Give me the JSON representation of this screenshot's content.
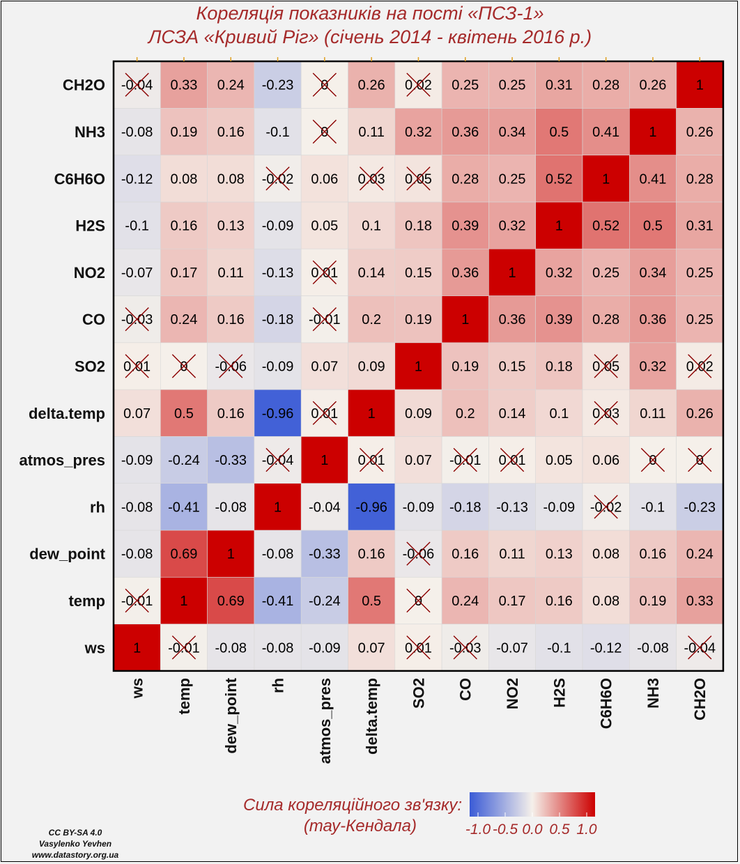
{
  "title_line1": "Кореляція показників на пості «ПСЗ-1»",
  "title_line2": "ЛСЗА «Кривий Ріг» (січень 2014 - квітень 2016 р.)",
  "legend": {
    "title_line1": "Сила кореляційного зв'язку:",
    "title_line2": "(тау-Кендала)",
    "ticks": [
      "-1.0",
      "-0.5",
      "0.0",
      "0.5",
      "1.0"
    ],
    "colors": {
      "low": "#3b5bd6",
      "mid": "#f5f0ea",
      "high": "#cc0000"
    }
  },
  "credit": {
    "line1": "CC BY-SA 4.0",
    "line2": "Vasylenko Yevhen",
    "line3": "www.datastory.org.ua"
  },
  "chart_data": {
    "type": "heatmap",
    "variables": [
      "ws",
      "temp",
      "dew_point",
      "rh",
      "atmos_pres",
      "delta.temp",
      "SO2",
      "CO",
      "NO2",
      "H2S",
      "C6H6O",
      "NH3",
      "CH2O"
    ],
    "cells": [
      [
        "1",
        "-0.01",
        "-0.08",
        "-0.08",
        "-0.09",
        "0.07",
        "0.01",
        "-0.03",
        "-0.07",
        "-0.1",
        "-0.12",
        "-0.08",
        "-0.04"
      ],
      [
        "-0.01",
        "1",
        "0.69",
        "-0.41",
        "-0.24",
        "0.5",
        "0",
        "0.24",
        "0.17",
        "0.16",
        "0.08",
        "0.19",
        "0.33"
      ],
      [
        "-0.08",
        "0.69",
        "1",
        "-0.08",
        "-0.33",
        "0.16",
        "-0.06",
        "0.16",
        "0.11",
        "0.13",
        "0.08",
        "0.16",
        "0.24"
      ],
      [
        "-0.08",
        "-0.41",
        "-0.08",
        "1",
        "-0.04",
        "-0.96",
        "-0.09",
        "-0.18",
        "-0.13",
        "-0.09",
        "-0.02",
        "-0.1",
        "-0.23"
      ],
      [
        "-0.09",
        "-0.24",
        "-0.33",
        "-0.04",
        "1",
        "0.01",
        "0.07",
        "-0.01",
        "0.01",
        "0.05",
        "0.06",
        "0",
        "0"
      ],
      [
        "0.07",
        "0.5",
        "0.16",
        "-0.96",
        "0.01",
        "1",
        "0.09",
        "0.2",
        "0.14",
        "0.1",
        "0.03",
        "0.11",
        "0.26"
      ],
      [
        "0.01",
        "0",
        "-0.06",
        "-0.09",
        "0.07",
        "0.09",
        "1",
        "0.19",
        "0.15",
        "0.18",
        "0.05",
        "0.32",
        "0.02"
      ],
      [
        "-0.03",
        "0.24",
        "0.16",
        "-0.18",
        "-0.01",
        "0.2",
        "0.19",
        "1",
        "0.36",
        "0.39",
        "0.28",
        "0.36",
        "0.25"
      ],
      [
        "-0.07",
        "0.17",
        "0.11",
        "-0.13",
        "0.01",
        "0.14",
        "0.15",
        "0.36",
        "1",
        "0.32",
        "0.25",
        "0.34",
        "0.25"
      ],
      [
        "-0.1",
        "0.16",
        "0.13",
        "-0.09",
        "0.05",
        "0.1",
        "0.18",
        "0.39",
        "0.32",
        "1",
        "0.52",
        "0.5",
        "0.31"
      ],
      [
        "-0.12",
        "0.08",
        "0.08",
        "-0.02",
        "0.06",
        "0.03",
        "0.05",
        "0.28",
        "0.25",
        "0.52",
        "1",
        "0.41",
        "0.28"
      ],
      [
        "-0.08",
        "0.19",
        "0.16",
        "-0.1",
        "0",
        "0.11",
        "0.32",
        "0.36",
        "0.34",
        "0.5",
        "0.41",
        "1",
        "0.26"
      ],
      [
        "-0.04",
        "0.33",
        "0.24",
        "-0.23",
        "0",
        "0.26",
        "0.02",
        "0.25",
        "0.25",
        "0.31",
        "0.28",
        "0.26",
        "1"
      ]
    ],
    "insignificant": [
      [
        0,
        1
      ],
      [
        0,
        6
      ],
      [
        0,
        7
      ],
      [
        0,
        12
      ],
      [
        1,
        0
      ],
      [
        1,
        6
      ],
      [
        2,
        6
      ],
      [
        3,
        10
      ],
      [
        4,
        3
      ],
      [
        4,
        5
      ],
      [
        4,
        7
      ],
      [
        4,
        8
      ],
      [
        4,
        11
      ],
      [
        4,
        12
      ],
      [
        5,
        4
      ],
      [
        5,
        10
      ],
      [
        6,
        0
      ],
      [
        6,
        1
      ],
      [
        6,
        2
      ],
      [
        6,
        10
      ],
      [
        6,
        12
      ],
      [
        7,
        0
      ],
      [
        7,
        4
      ],
      [
        8,
        4
      ],
      [
        10,
        3
      ],
      [
        10,
        5
      ],
      [
        10,
        6
      ],
      [
        11,
        4
      ],
      [
        12,
        0
      ],
      [
        12,
        4
      ],
      [
        12,
        6
      ]
    ],
    "value_range": [
      -1,
      1
    ]
  }
}
